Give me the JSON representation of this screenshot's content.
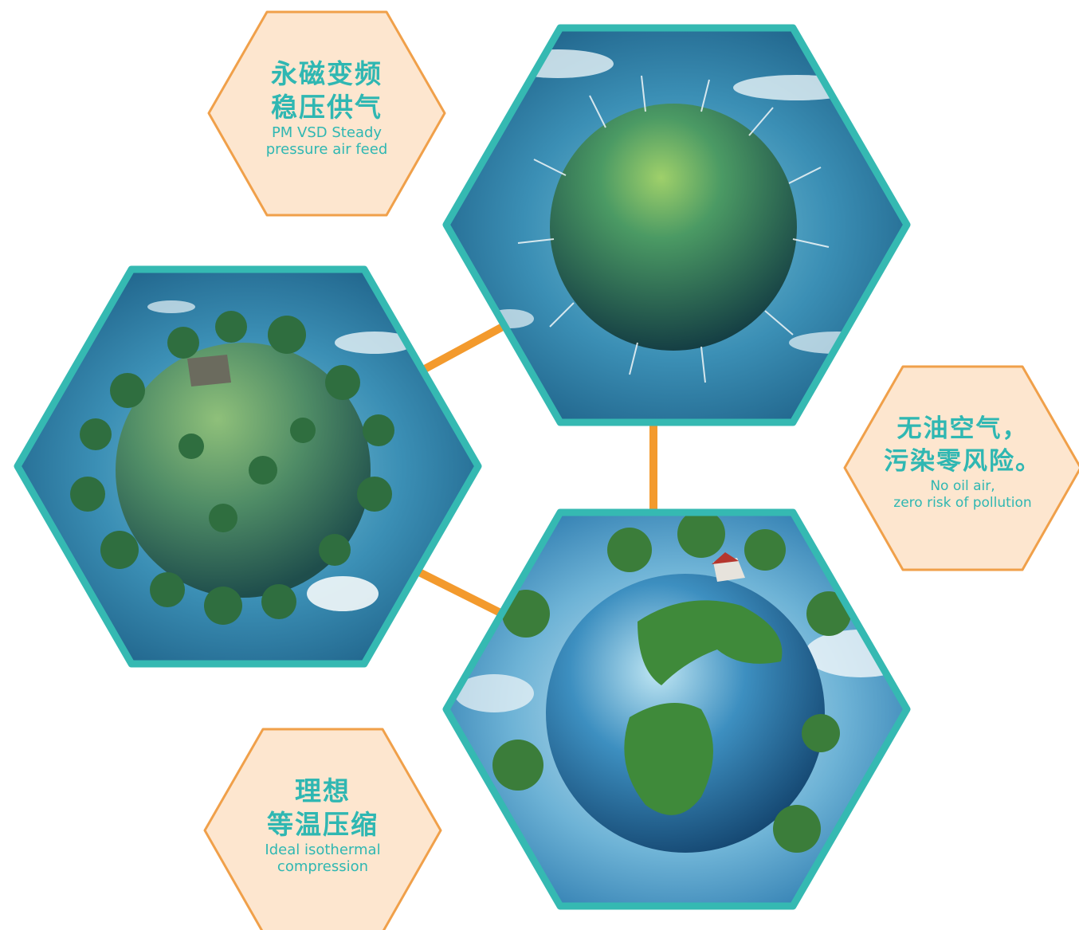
{
  "colors": {
    "teal_border": "#35b9b2",
    "connector_orange": "#f39a2d",
    "label_fill": "#fde6cf",
    "label_border": "#f0a04a",
    "label_text": "#2fb7b2"
  },
  "images": {
    "top_globe": "wind-turbine-planet",
    "left_globe": "forest-planet-with-house",
    "bottom_globe": "earth-with-trees"
  },
  "labels": {
    "pm_vsd": {
      "cn_line1": "永磁变频",
      "cn_line2": "稳压供气",
      "en_line1": "PM VSD Steady",
      "en_line2": "pressure air feed"
    },
    "oil_free": {
      "cn_line1": "无油空气，",
      "cn_line2": "污染零风险。",
      "en_line1": "No oil air,",
      "en_line2": "zero risk of pollution"
    },
    "isothermal": {
      "cn_line1": "理想",
      "cn_line2": "等温压缩",
      "en_line1": "Ideal isothermal",
      "en_line2": "compression"
    }
  }
}
